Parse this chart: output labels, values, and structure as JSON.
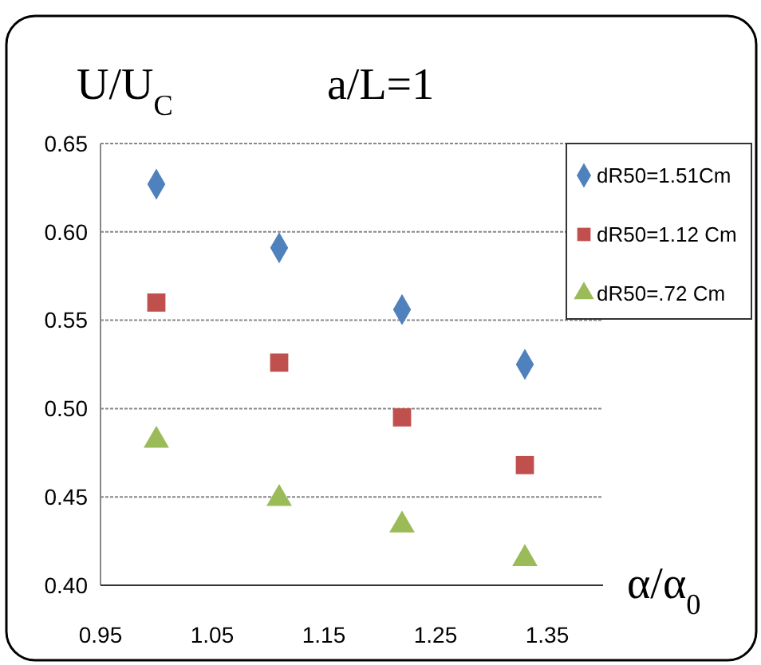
{
  "chart_data": {
    "type": "scatter",
    "title": "a/L=1",
    "ylabel": "U/U$_{C}$",
    "xlabel": "α/α$_{0}$",
    "x": [
      1,
      1.11,
      1.22,
      1.33
    ],
    "series": [
      {
        "name": "dR50=1.51Cm",
        "color": "#4f81bd",
        "marker": "diamond",
        "values": [
          0.627,
          0.591,
          0.556,
          0.525
        ]
      },
      {
        "name": "dR50=1.12 Cm",
        "color": "#c0504d",
        "marker": "square",
        "values": [
          0.56,
          0.526,
          0.495,
          0.468
        ]
      },
      {
        "name": "dR50=.72 Cm",
        "color": "#9bbb59",
        "marker": "triangle",
        "values": [
          0.482,
          0.449,
          0.434,
          0.415
        ]
      }
    ],
    "xlim": [
      0.95,
      1.4
    ],
    "xticks": [
      0.95,
      1.05,
      1.15,
      1.25,
      1.35
    ],
    "ylim": [
      0.4,
      0.65
    ],
    "yticks": [
      {
        "value": 0.4,
        "label": "0.40"
      },
      0.45,
      {
        "value": 0.5,
        "label": "0.50"
      },
      0.55,
      {
        "value": 0.6,
        "label": "0.60"
      },
      0.65
    ],
    "grid": "y",
    "legend": "top right"
  }
}
